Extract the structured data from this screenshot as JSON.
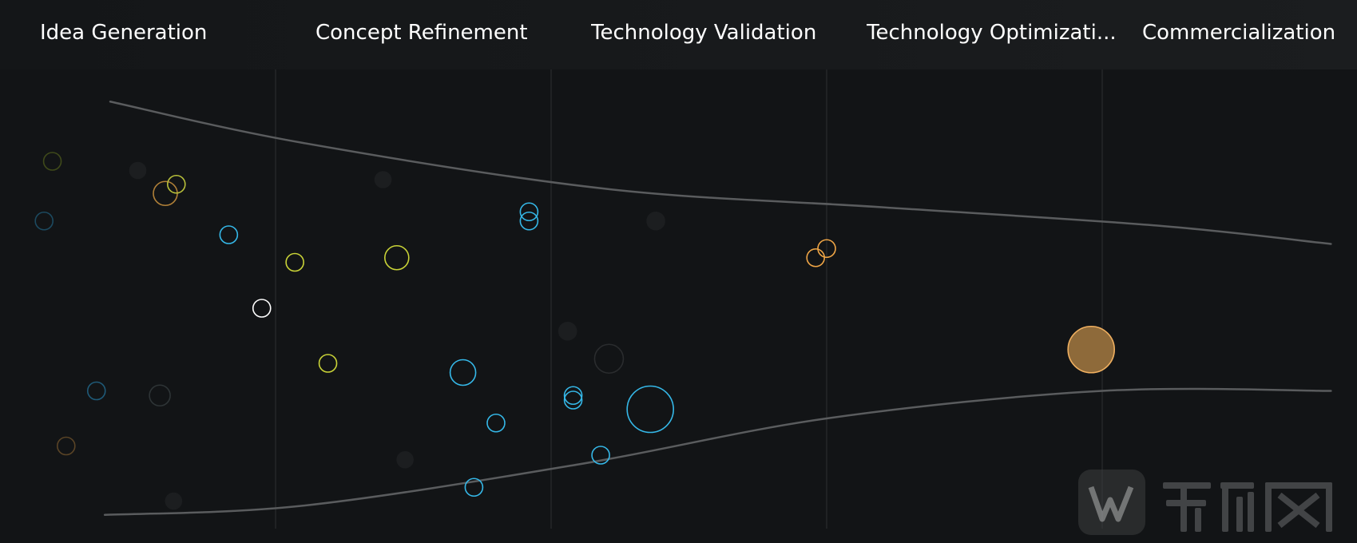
{
  "stages": [
    {
      "label": "Idea Generation"
    },
    {
      "label": "Concept Refinement"
    },
    {
      "label": "Technology Validation"
    },
    {
      "label": "Technology Optimizati..."
    },
    {
      "label": "Commercialization"
    }
  ],
  "chart_data": {
    "type": "scatter",
    "title": "",
    "xlabel": "",
    "ylabel": "",
    "categories": [
      "Idea Generation",
      "Concept Refinement",
      "Technology Validation",
      "Technology Optimizati...",
      "Commercialization"
    ],
    "xlim": [
      0,
      5
    ],
    "ylim": [
      0,
      1
    ],
    "grid": true,
    "colors": {
      "blue": "#35b8e8",
      "yellow": "#c9d337",
      "orange": "#f0a646",
      "white": "#ffffff",
      "faded": "#3a3c3e",
      "funnel": "#5a5c5e",
      "divider": "#2e3033"
    },
    "points": [
      {
        "x": 0.19,
        "y": 0.2,
        "r": 11,
        "color": "#3f4a1a",
        "fill": "none"
      },
      {
        "x": 0.16,
        "y": 0.33,
        "r": 11,
        "color": "#1c4a60",
        "fill": "none"
      },
      {
        "x": 0.6,
        "y": 0.27,
        "r": 15,
        "color": "#b08038",
        "fill": "none"
      },
      {
        "x": 0.64,
        "y": 0.25,
        "r": 11,
        "color": "#b8c03a",
        "fill": "none"
      },
      {
        "x": 0.83,
        "y": 0.36,
        "r": 11,
        "color": "#35b8e8",
        "fill": "none"
      },
      {
        "x": 1.07,
        "y": 0.42,
        "r": 11,
        "color": "#c9d337",
        "fill": "none"
      },
      {
        "x": 0.95,
        "y": 0.52,
        "r": 11,
        "color": "#ffffff",
        "fill": "none"
      },
      {
        "x": 1.19,
        "y": 0.64,
        "r": 11,
        "color": "#c9d337",
        "fill": "none"
      },
      {
        "x": 0.35,
        "y": 0.7,
        "r": 11,
        "color": "#1f5a78",
        "fill": "none"
      },
      {
        "x": 0.58,
        "y": 0.71,
        "r": 13,
        "color": "#2e3436",
        "fill": "none"
      },
      {
        "x": 0.24,
        "y": 0.82,
        "r": 11,
        "color": "#5a4426",
        "fill": "none"
      },
      {
        "x": 0.5,
        "y": 0.22,
        "r": 10,
        "color": "#1c1e20",
        "fill": "#1c1e20"
      },
      {
        "x": 0.63,
        "y": 0.94,
        "r": 10,
        "color": "#1c1e20",
        "fill": "#1c1e20"
      },
      {
        "x": 1.39,
        "y": 0.24,
        "r": 10,
        "color": "#1c1e20",
        "fill": "#1c1e20"
      },
      {
        "x": 1.47,
        "y": 0.85,
        "r": 10,
        "color": "#1c1e20",
        "fill": "#1c1e20"
      },
      {
        "x": 1.44,
        "y": 0.41,
        "r": 15,
        "color": "#c9d337",
        "fill": "none"
      },
      {
        "x": 1.92,
        "y": 0.31,
        "r": 11,
        "color": "#35b8e8",
        "fill": "none"
      },
      {
        "x": 1.92,
        "y": 0.33,
        "r": 11,
        "color": "#35b8e8",
        "fill": "none"
      },
      {
        "x": 1.68,
        "y": 0.66,
        "r": 16,
        "color": "#35b8e8",
        "fill": "none"
      },
      {
        "x": 1.8,
        "y": 0.77,
        "r": 11,
        "color": "#35b8e8",
        "fill": "none"
      },
      {
        "x": 1.72,
        "y": 0.91,
        "r": 11,
        "color": "#35b8e8",
        "fill": "none"
      },
      {
        "x": 2.08,
        "y": 0.71,
        "r": 11,
        "color": "#35b8e8",
        "fill": "none"
      },
      {
        "x": 2.08,
        "y": 0.72,
        "r": 11,
        "color": "#35b8e8",
        "fill": "none"
      },
      {
        "x": 2.18,
        "y": 0.84,
        "r": 11,
        "color": "#35b8e8",
        "fill": "none"
      },
      {
        "x": 2.36,
        "y": 0.74,
        "r": 29,
        "color": "#35b8e8",
        "fill": "none"
      },
      {
        "x": 2.21,
        "y": 0.63,
        "r": 18,
        "color": "#2a2c2e",
        "fill": "none"
      },
      {
        "x": 2.06,
        "y": 0.57,
        "r": 11,
        "color": "#1c1e20",
        "fill": "#1c1e20"
      },
      {
        "x": 2.38,
        "y": 0.33,
        "r": 11,
        "color": "#1c1e20",
        "fill": "#1c1e20"
      },
      {
        "x": 2.96,
        "y": 0.41,
        "r": 11,
        "color": "#f0a646",
        "fill": "none"
      },
      {
        "x": 3.0,
        "y": 0.39,
        "r": 11,
        "color": "#f0a646",
        "fill": "none"
      },
      {
        "x": 3.96,
        "y": 0.61,
        "r": 29,
        "color": "#f0b060",
        "fill": "#8e6a3a"
      }
    ],
    "funnel": {
      "upper": [
        [
          0.4,
          0.07
        ],
        [
          1.1,
          0.16
        ],
        [
          2.2,
          0.26
        ],
        [
          3.2,
          0.3
        ],
        [
          4.2,
          0.34
        ],
        [
          4.83,
          0.38
        ]
      ],
      "lower": [
        [
          0.38,
          0.97
        ],
        [
          1.1,
          0.95
        ],
        [
          2.1,
          0.86
        ],
        [
          3.0,
          0.76
        ],
        [
          4.0,
          0.7
        ],
        [
          4.83,
          0.7
        ]
      ]
    }
  }
}
